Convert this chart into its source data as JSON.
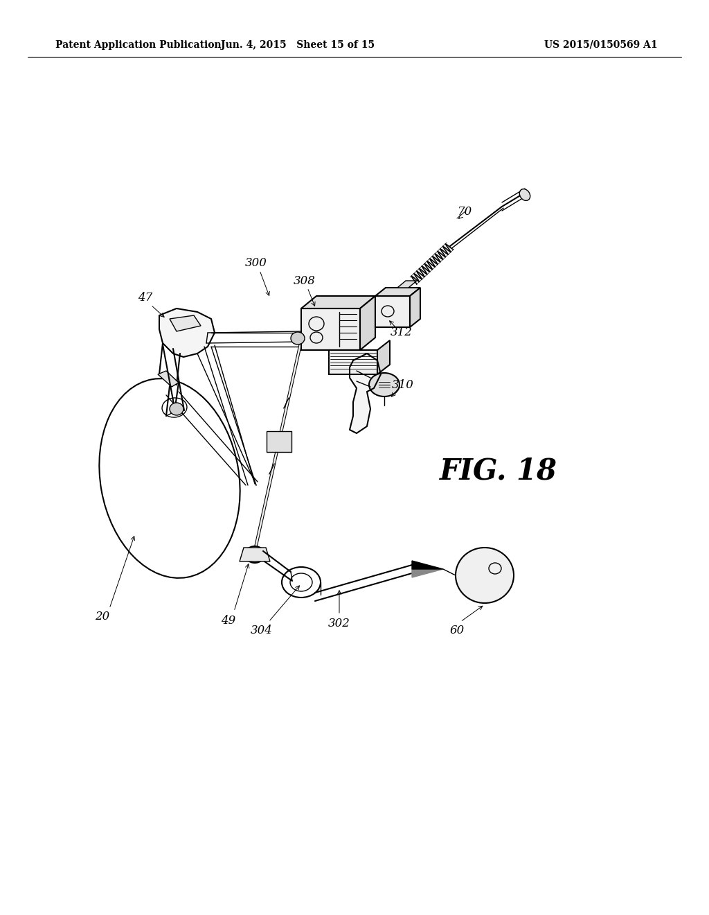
{
  "bg_color": "#ffffff",
  "header_left": "Patent Application Publication",
  "header_center": "Jun. 4, 2015   Sheet 15 of 15",
  "header_right": "US 2015/0150569 A1",
  "fig_label": "FIG. 18",
  "line_color": "#000000",
  "annotation_fontsize": 12,
  "header_fontsize": 10,
  "fig_label_fontsize": 30
}
